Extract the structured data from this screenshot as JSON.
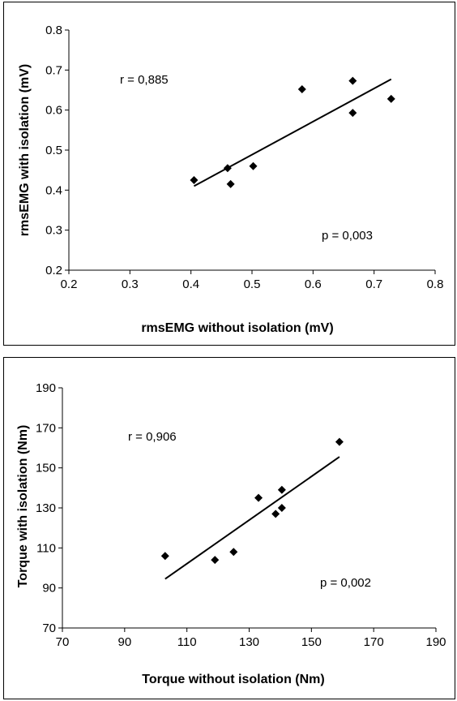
{
  "chart_data": [
    {
      "type": "scatter",
      "title": "",
      "xlabel": "rmsEMG without isolation (mV)",
      "ylabel": "rmsEMG with isolation (mV)",
      "xlim": [
        0.2,
        0.8
      ],
      "ylim": [
        0.2,
        0.8
      ],
      "x_ticks": [
        "0.2",
        "0.3",
        "0.4",
        "0.5",
        "0.6",
        "0.7",
        "0.8"
      ],
      "y_ticks": [
        "0.2",
        "0.3",
        "0.4",
        "0.5",
        "0.6",
        "0.7",
        "0.8"
      ],
      "x_tick_values": [
        0.2,
        0.3,
        0.4,
        0.5,
        0.6,
        0.7,
        0.8
      ],
      "y_tick_values": [
        0.2,
        0.3,
        0.4,
        0.5,
        0.6,
        0.7,
        0.8
      ],
      "grid": false,
      "marker": "diamond",
      "series": [
        {
          "points": [
            {
              "x": 0.405,
              "y": 0.425
            },
            {
              "x": 0.46,
              "y": 0.455
            },
            {
              "x": 0.465,
              "y": 0.415
            },
            {
              "x": 0.502,
              "y": 0.46
            },
            {
              "x": 0.582,
              "y": 0.652
            },
            {
              "x": 0.665,
              "y": 0.673
            },
            {
              "x": 0.665,
              "y": 0.593
            },
            {
              "x": 0.728,
              "y": 0.628
            }
          ]
        }
      ],
      "trendline": {
        "x1": 0.405,
        "y1": 0.41,
        "x2": 0.728,
        "y2": 0.677
      },
      "annotations": {
        "r": "r = 0,885",
        "p": "p = 0,003"
      },
      "colors": {
        "marker": "#000000",
        "line": "#000000",
        "axis": "#000000"
      }
    },
    {
      "type": "scatter",
      "title": "",
      "xlabel": "Torque without isolation (Nm)",
      "ylabel": "Torque with isolation (Nm)",
      "xlim": [
        70,
        190
      ],
      "ylim": [
        70,
        190
      ],
      "x_ticks": [
        "70",
        "90",
        "110",
        "130",
        "150",
        "170",
        "190"
      ],
      "y_ticks": [
        "70",
        "90",
        "110",
        "130",
        "150",
        "170",
        "190"
      ],
      "x_tick_values": [
        70,
        90,
        110,
        130,
        150,
        170,
        190
      ],
      "y_tick_values": [
        70,
        90,
        110,
        130,
        150,
        170,
        190
      ],
      "grid": false,
      "marker": "diamond",
      "series": [
        {
          "points": [
            {
              "x": 103,
              "y": 106
            },
            {
              "x": 119,
              "y": 104
            },
            {
              "x": 125,
              "y": 108
            },
            {
              "x": 133,
              "y": 135
            },
            {
              "x": 138.5,
              "y": 127
            },
            {
              "x": 140.5,
              "y": 139
            },
            {
              "x": 140.5,
              "y": 130
            },
            {
              "x": 159,
              "y": 163
            }
          ]
        }
      ],
      "trendline": {
        "x1": 103,
        "y1": 94.5,
        "x2": 159,
        "y2": 155.5
      },
      "annotations": {
        "r": "r = 0,906",
        "p": "p = 0,002"
      },
      "colors": {
        "marker": "#000000",
        "line": "#000000",
        "axis": "#000000"
      }
    }
  ]
}
